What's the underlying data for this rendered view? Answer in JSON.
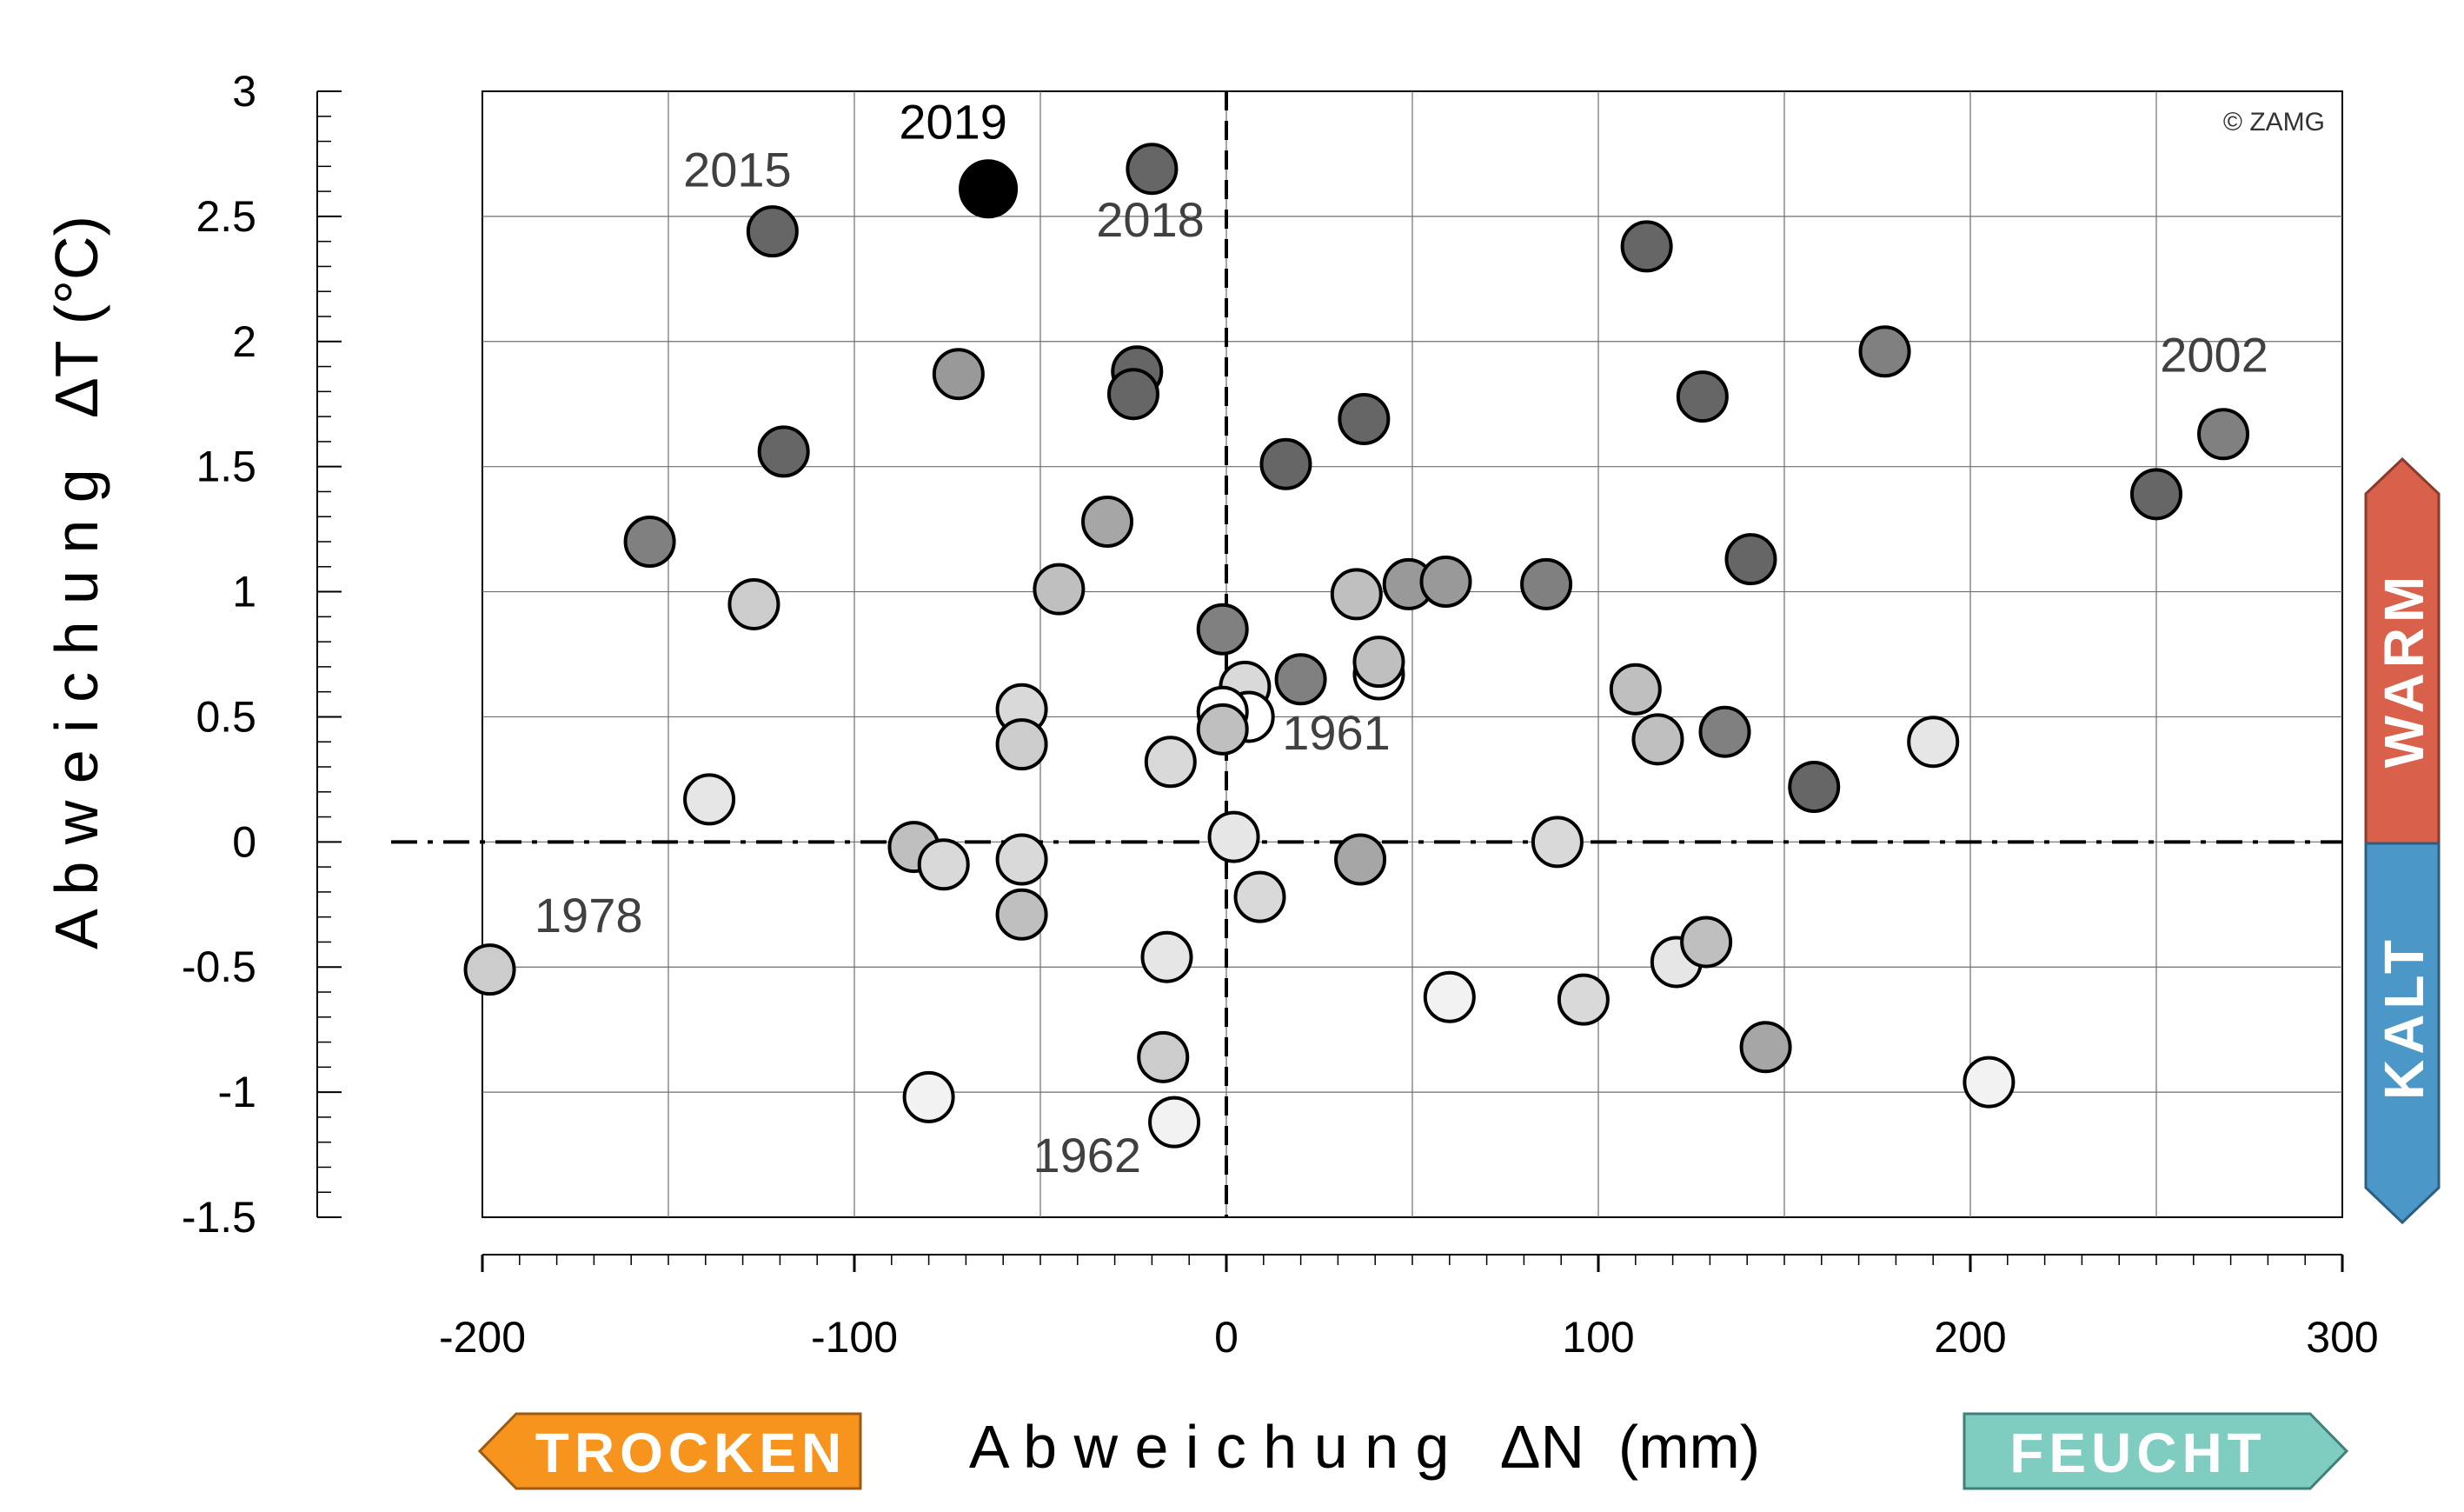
{
  "chart_data": {
    "type": "scatter",
    "title": "",
    "xlabel": "A b w e i c h u n g   ΔN  (mm)",
    "ylabel": "A b w e i c h u n g   ΔT (°C)",
    "xlim": [
      -200,
      300
    ],
    "ylim": [
      -1.5,
      3
    ],
    "x_ticks": [
      "-200",
      "-100",
      "0",
      "100",
      "200",
      "300"
    ],
    "y_ticks": [
      "-1.5",
      "-1",
      "-0.5",
      "0",
      "0.5",
      "1",
      "1.5",
      "2",
      "2.5",
      "3"
    ],
    "grid": true,
    "copyright": "© ZAMG",
    "labels": {
      "dry": "TROCKEN",
      "wet": "FEUCHT",
      "warm": "WARM",
      "cold": "KALT"
    },
    "colors": {
      "dry": "#F7941D",
      "wet": "#7FCDC1",
      "warm": "#D9604B",
      "cold": "#4A97C8",
      "highlight": "#000000"
    },
    "points": [
      {
        "x": -64,
        "y": 2.61,
        "shade": "#000000",
        "highlight": true
      },
      {
        "x": -122,
        "y": 2.44,
        "shade": "#666666"
      },
      {
        "x": -20,
        "y": 2.69,
        "shade": "#666666"
      },
      {
        "x": 113,
        "y": 2.38,
        "shade": "#666666"
      },
      {
        "x": -72,
        "y": 1.87,
        "shade": "#999999"
      },
      {
        "x": -24,
        "y": 1.88,
        "shade": "#666666"
      },
      {
        "x": -25,
        "y": 1.79,
        "shade": "#666666"
      },
      {
        "x": 177,
        "y": 1.96,
        "shade": "#808080"
      },
      {
        "x": 128,
        "y": 1.78,
        "shade": "#666666"
      },
      {
        "x": 268,
        "y": 1.63,
        "shade": "#808080"
      },
      {
        "x": 250,
        "y": 1.39,
        "shade": "#666666"
      },
      {
        "x": -119,
        "y": 1.56,
        "shade": "#666666"
      },
      {
        "x": 16,
        "y": 1.51,
        "shade": "#666666"
      },
      {
        "x": 37,
        "y": 1.69,
        "shade": "#666666"
      },
      {
        "x": -155,
        "y": 1.2,
        "shade": "#808080"
      },
      {
        "x": -32,
        "y": 1.28,
        "shade": "#a6a6a6"
      },
      {
        "x": -127,
        "y": 0.95,
        "shade": "#cccccc"
      },
      {
        "x": -45,
        "y": 1.01,
        "shade": "#bfbfbf"
      },
      {
        "x": -1,
        "y": 0.85,
        "shade": "#808080"
      },
      {
        "x": 35,
        "y": 0.99,
        "shade": "#bfbfbf"
      },
      {
        "x": 49,
        "y": 1.03,
        "shade": "#999999"
      },
      {
        "x": 59,
        "y": 1.04,
        "shade": "#999999"
      },
      {
        "x": 86,
        "y": 1.03,
        "shade": "#808080"
      },
      {
        "x": 141,
        "y": 1.13,
        "shade": "#666666"
      },
      {
        "x": 20,
        "y": 0.65,
        "shade": "#808080"
      },
      {
        "x": 41,
        "y": 0.67,
        "shade": "#ffffff"
      },
      {
        "x": 41,
        "y": 0.72,
        "shade": "#bfbfbf"
      },
      {
        "x": 5,
        "y": 0.62,
        "shade": "#d9d9d9"
      },
      {
        "x": 6,
        "y": 0.5,
        "shade": "#ffffff"
      },
      {
        "x": -1,
        "y": 0.52,
        "shade": "#ffffff"
      },
      {
        "x": -1,
        "y": 0.45,
        "shade": "#bfbfbf"
      },
      {
        "x": -55,
        "y": 0.53,
        "shade": "#d9d9d9"
      },
      {
        "x": -55,
        "y": 0.39,
        "shade": "#cccccc"
      },
      {
        "x": -15,
        "y": 0.32,
        "shade": "#d9d9d9"
      },
      {
        "x": 110,
        "y": 0.61,
        "shade": "#bfbfbf"
      },
      {
        "x": 116,
        "y": 0.41,
        "shade": "#bfbfbf"
      },
      {
        "x": 134,
        "y": 0.44,
        "shade": "#808080"
      },
      {
        "x": 158,
        "y": 0.22,
        "shade": "#666666"
      },
      {
        "x": 190,
        "y": 0.4,
        "shade": "#e6e6e6"
      },
      {
        "x": -139,
        "y": 0.17,
        "shade": "#e6e6e6"
      },
      {
        "x": -84,
        "y": -0.02,
        "shade": "#bfbfbf"
      },
      {
        "x": -76,
        "y": -0.09,
        "shade": "#d9d9d9"
      },
      {
        "x": -55,
        "y": -0.07,
        "shade": "#d9d9d9"
      },
      {
        "x": -55,
        "y": -0.29,
        "shade": "#bfbfbf"
      },
      {
        "x": 2,
        "y": 0.02,
        "shade": "#e6e6e6"
      },
      {
        "x": 36,
        "y": -0.07,
        "shade": "#a6a6a6"
      },
      {
        "x": 89,
        "y": 0.0,
        "shade": "#d9d9d9"
      },
      {
        "x": 9,
        "y": -0.22,
        "shade": "#d9d9d9"
      },
      {
        "x": -198,
        "y": -0.51,
        "shade": "#cccccc"
      },
      {
        "x": -16,
        "y": -0.46,
        "shade": "#e6e6e6"
      },
      {
        "x": 60,
        "y": -0.62,
        "shade": "#f2f2f2"
      },
      {
        "x": 96,
        "y": -0.63,
        "shade": "#d9d9d9"
      },
      {
        "x": 121,
        "y": -0.48,
        "shade": "#e6e6e6"
      },
      {
        "x": 129,
        "y": -0.4,
        "shade": "#bfbfbf"
      },
      {
        "x": 145,
        "y": -0.82,
        "shade": "#a6a6a6"
      },
      {
        "x": 205,
        "y": -0.96,
        "shade": "#f2f2f2"
      },
      {
        "x": -17,
        "y": -0.86,
        "shade": "#cccccc"
      },
      {
        "x": -80,
        "y": -1.02,
        "shade": "#f2f2f2"
      },
      {
        "x": -14,
        "y": -1.12,
        "shade": "#f2f2f2"
      }
    ],
    "annotations": [
      {
        "text": "2019",
        "x": -88,
        "y": 2.81,
        "highlight": true
      },
      {
        "text": "2015",
        "x": -146,
        "y": 2.62
      },
      {
        "text": "2018",
        "x": -35,
        "y": 2.42
      },
      {
        "text": "2002",
        "x": 251,
        "y": 1.88
      },
      {
        "text": "1961",
        "x": 15,
        "y": 0.37
      },
      {
        "text": "1978",
        "x": -186,
        "y": -0.36
      },
      {
        "text": "1962",
        "x": -52,
        "y": -1.32
      }
    ]
  }
}
